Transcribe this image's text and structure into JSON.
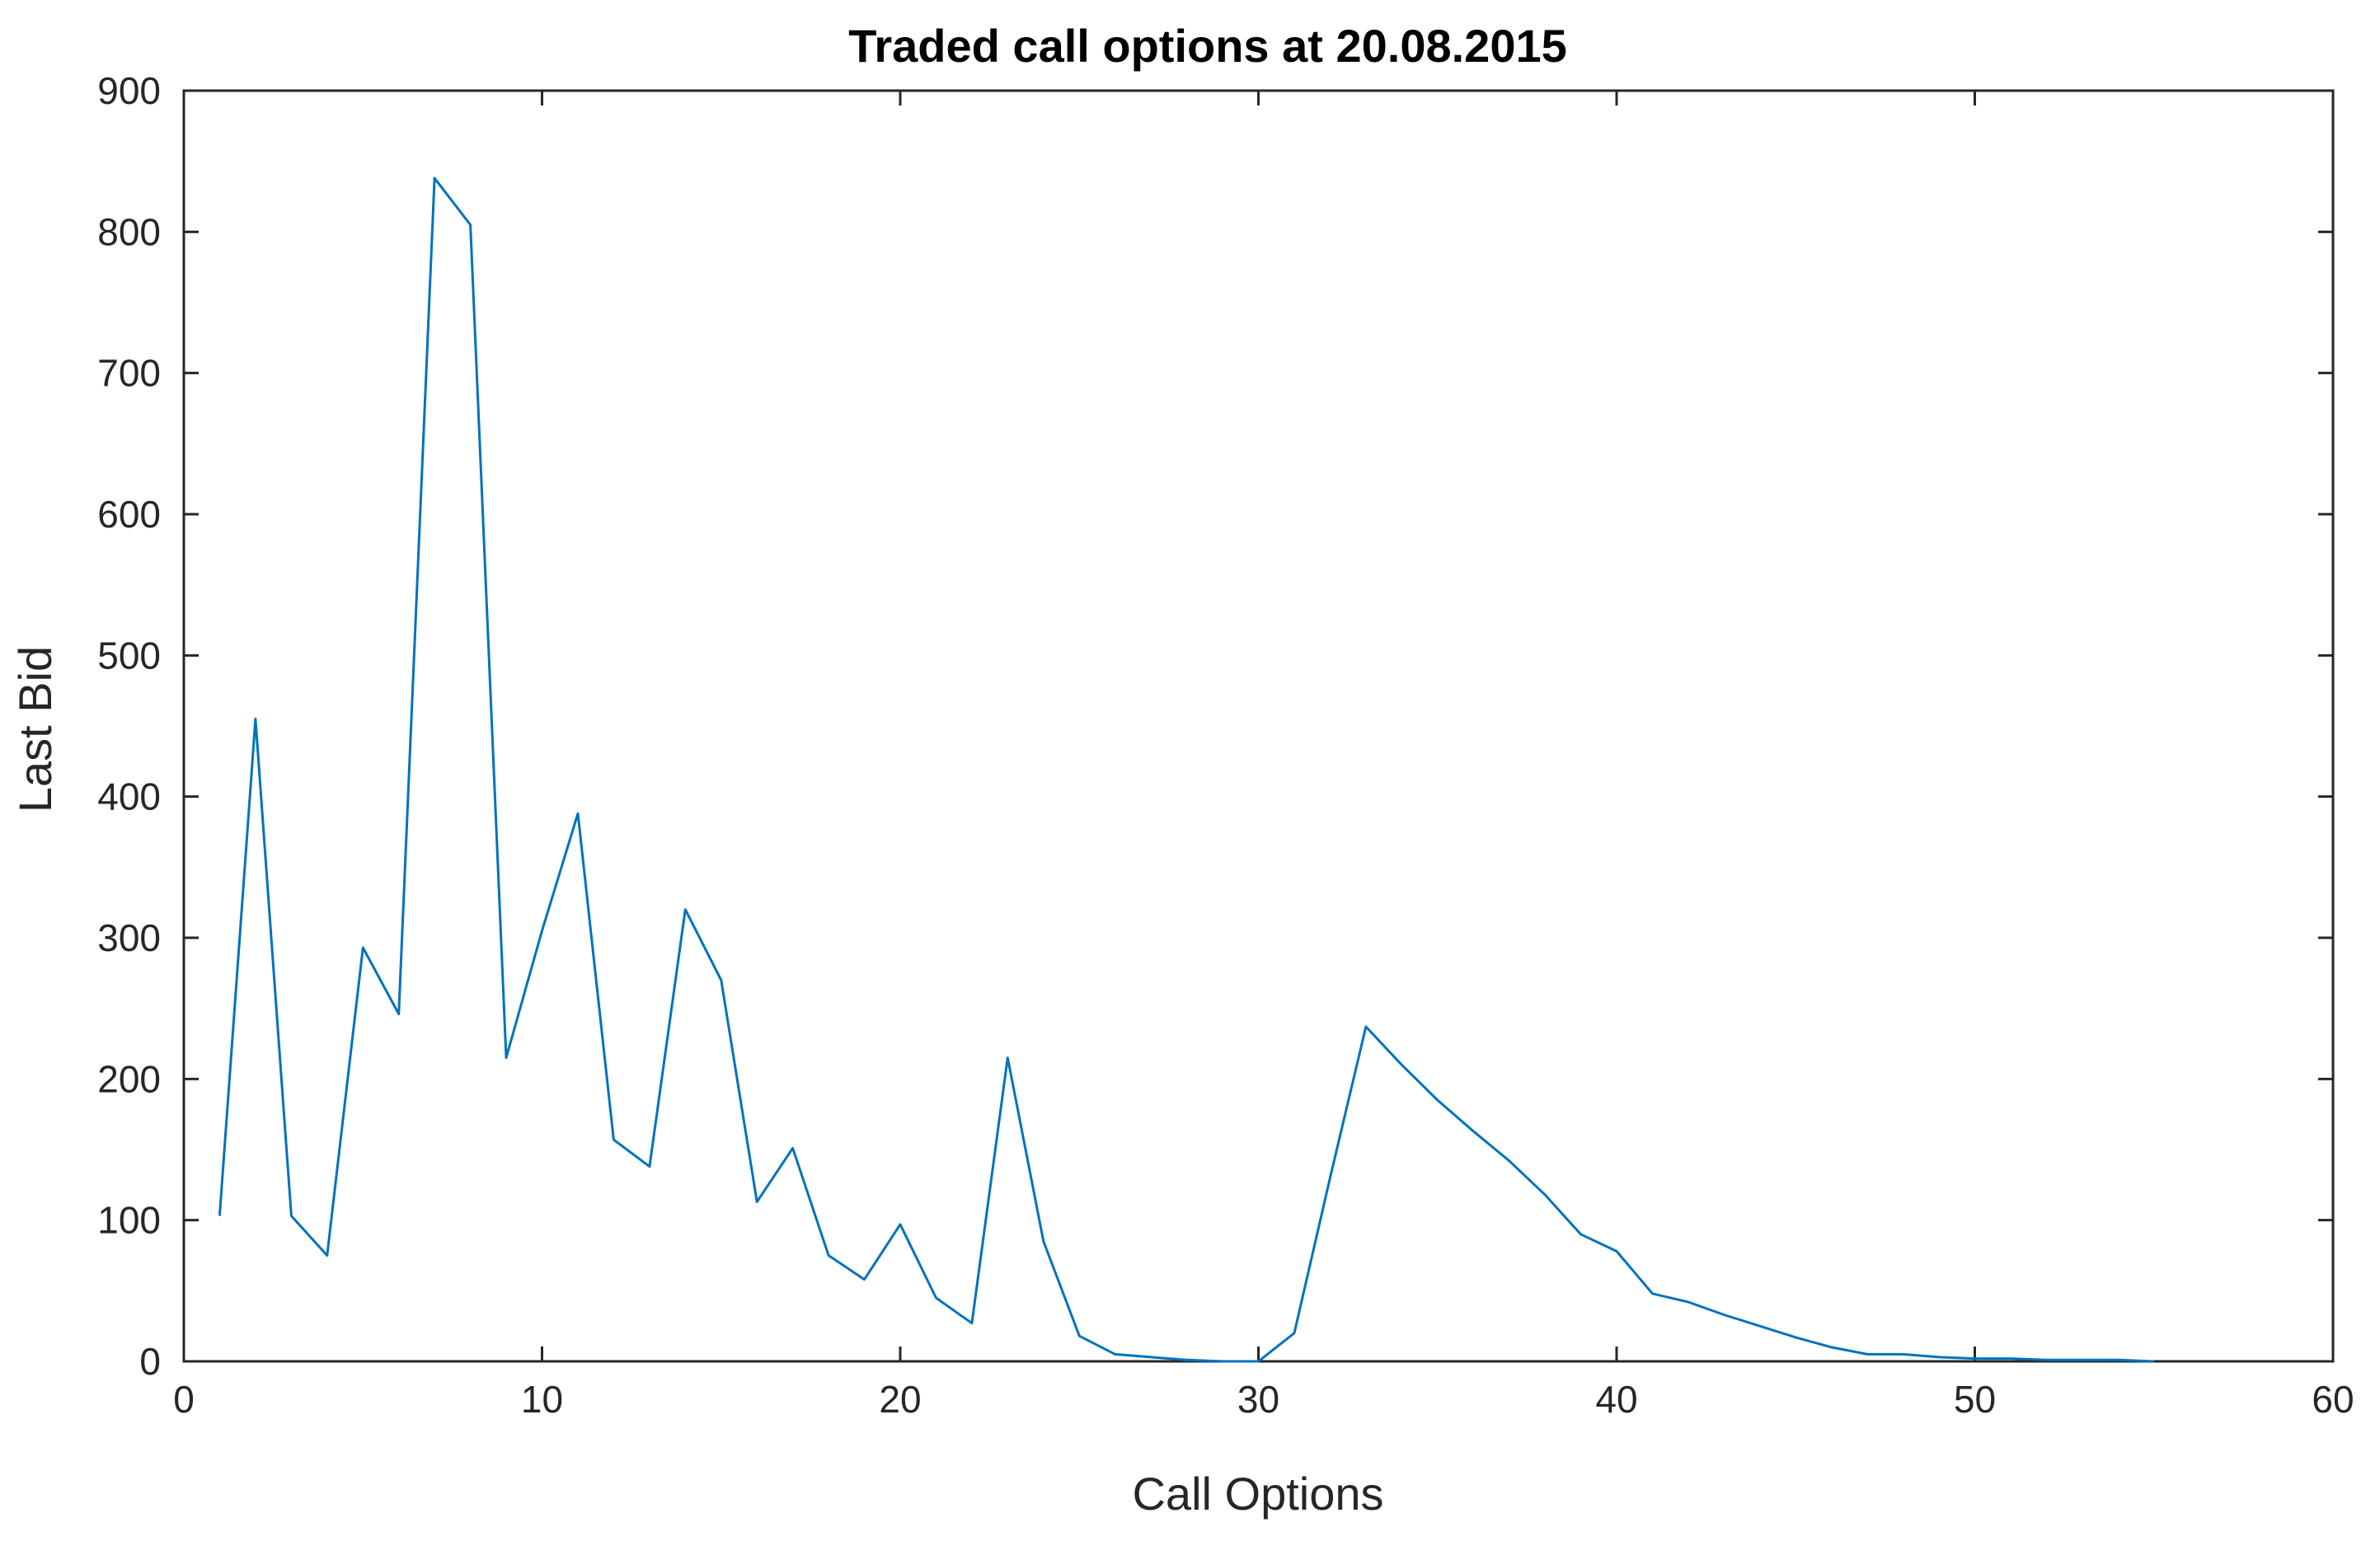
{
  "chart_data": {
    "type": "line",
    "title": "Traded call options at 20.08.2015",
    "xlabel": "Call Options",
    "ylabel": "Last Bid",
    "xlim": [
      0,
      60
    ],
    "ylim": [
      0,
      900
    ],
    "xticks": [
      0,
      10,
      20,
      30,
      40,
      50,
      60
    ],
    "yticks": [
      0,
      100,
      200,
      300,
      400,
      500,
      600,
      700,
      800,
      900
    ],
    "grid": false,
    "line_color": "#0072bd",
    "axes_color": "#262626",
    "series": [
      {
        "x": [
          1,
          2,
          3,
          4,
          5,
          6,
          7,
          8,
          9,
          10,
          11,
          12,
          13,
          14,
          15,
          16,
          17,
          18,
          19,
          20,
          21,
          22,
          23,
          24,
          25,
          26,
          27,
          28,
          29,
          30,
          31,
          32,
          33,
          34,
          35,
          36,
          37,
          38,
          39,
          40,
          41,
          42,
          43,
          44,
          45,
          46,
          47,
          48,
          49,
          50,
          51,
          52,
          53,
          54,
          55
        ],
        "values": [
          103,
          455,
          103,
          75,
          293,
          246,
          838,
          805,
          215,
          305,
          388,
          157,
          138,
          320,
          270,
          113,
          151,
          75,
          58,
          97,
          45,
          27,
          215,
          85,
          18,
          5,
          3,
          1,
          0,
          0,
          20,
          130,
          237,
          210,
          185,
          163,
          142,
          118,
          90,
          78,
          48,
          42,
          33,
          25,
          17,
          10,
          5,
          5,
          3,
          2,
          2,
          1,
          1,
          1,
          0
        ]
      }
    ]
  }
}
